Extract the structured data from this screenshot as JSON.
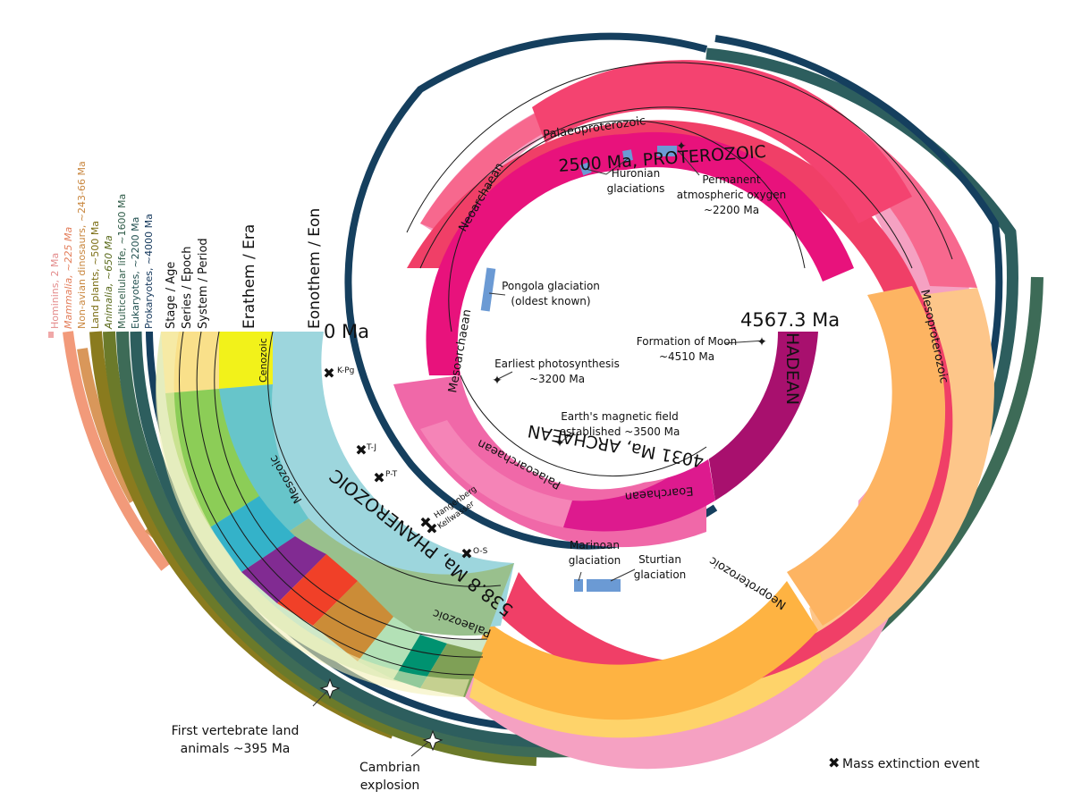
{
  "chart_data": {
    "type": "spiral geological time scale",
    "column_headers": {
      "stage": "Stage / Age",
      "series": "Series / Epoch",
      "system": "System / Period",
      "erathem": "Erathem / Era",
      "eonothem": "Eonothem / Eon"
    },
    "time_labels": {
      "present": "0 Ma",
      "start": "4567.3 Ma",
      "phanerozoic": "538.8 Ma, PHANEROZOIC",
      "proterozoic": "2500 Ma, PROTEROZOIC",
      "archaean": "4031 Ma, ARCHAEAN",
      "hadean": "HADEAN"
    },
    "eras": {
      "cenozoic": "Cenozoic",
      "mesozoic": "Mesozoic",
      "palaeozoic": "Palaeozoic",
      "neoproterozoic": "Neoproterozoic",
      "mesoproterozoic": "Mesoproterozoic",
      "palaeoproterozoic": "Palaeoproterozoic",
      "neoarchaean": "Neoarchaean",
      "mesoarchaean": "Mesoarchaean",
      "palaeoarchaean": "Palaeoarchaean",
      "eoarchaean": "Eoarchaean"
    },
    "life_ranges": [
      {
        "label": "Hominins, 2 Ma",
        "color": "#f0a8a8"
      },
      {
        "label": "Mammalia, ~225 Ma",
        "color": "#f29a7a"
      },
      {
        "label": "Non-avian dinosaurs, ~243-66 Ma",
        "color": "#d9975a"
      },
      {
        "label": "Land plants, ~500 Ma",
        "color": "#8a7b1e"
      },
      {
        "label": "Animalia, ~650 Ma",
        "color": "#6b7a2a"
      },
      {
        "label": "Multicellular life, ~1600 Ma",
        "color": "#3d6b57"
      },
      {
        "label": "Eukaryotes, ~2200 Ma",
        "color": "#2d5e5e"
      },
      {
        "label": "Prokaryotes, ~4000 Ma",
        "color": "#153f5e"
      }
    ],
    "extinctions": [
      {
        "label": "K-Pg",
        "age": 66
      },
      {
        "label": "T-J",
        "age": 201
      },
      {
        "label": "P-T",
        "age": 252
      },
      {
        "label": "Hangenberg",
        "age": 359
      },
      {
        "label": "Kellwasser",
        "age": 372
      },
      {
        "label": "O-S",
        "age": 444
      }
    ],
    "glaciations": {
      "huronian": "Huronian glaciations",
      "pongola": "Pongola glaciation (oldest known)",
      "marinoan": "Marinoan glaciation",
      "sturtian": "Sturtian glaciation"
    },
    "events": {
      "oxygen_1": "Permanent",
      "oxygen_2": "atmospheric oxygen",
      "oxygen_3": "~2200 Ma",
      "moon_1": "Formation of Moon",
      "moon_2": "~4510 Ma",
      "photo_1": "Earliest photosynthesis",
      "photo_2": "~3200 Ma",
      "magnet_1": "Earth's magnetic field",
      "magnet_2": "established ~3500 Ma",
      "land_1": "First vertebrate land",
      "land_2": "animals ~395 Ma",
      "cambrian_1": "Cambrian",
      "cambrian_2": "explosion"
    },
    "legend": "Mass extinction event",
    "colors": {
      "phanerozoic": "#9dd6dd",
      "proterozoic": "#f03f67",
      "archaean": "#e8127c",
      "hadean": "#a8106e",
      "cenozoic": "#f2f21a",
      "mesozoic": "#67c5ca",
      "palaeozoic": "#99c08d",
      "neoproterozoic": "#feb342",
      "mesoproterozoic": "#fdb462",
      "palaeoproterozoic": "#f44370",
      "glaciation": "#6b9ad4"
    }
  }
}
